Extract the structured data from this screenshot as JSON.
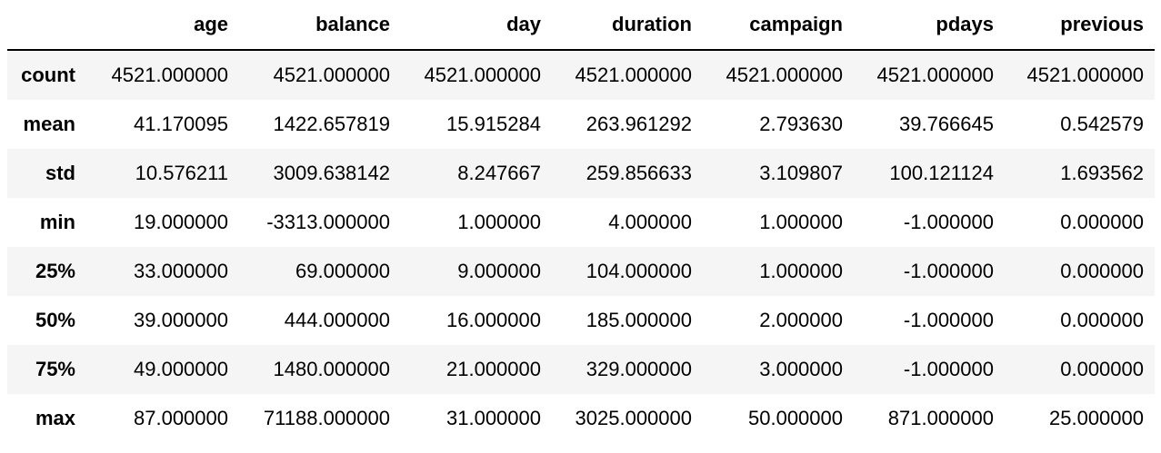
{
  "table": {
    "index_header": "",
    "columns": [
      "age",
      "balance",
      "day",
      "duration",
      "campaign",
      "pdays",
      "previous"
    ],
    "rows": [
      {
        "label": "count",
        "values": [
          "4521.000000",
          "4521.000000",
          "4521.000000",
          "4521.000000",
          "4521.000000",
          "4521.000000",
          "4521.000000"
        ]
      },
      {
        "label": "mean",
        "values": [
          "41.170095",
          "1422.657819",
          "15.915284",
          "263.961292",
          "2.793630",
          "39.766645",
          "0.542579"
        ]
      },
      {
        "label": "std",
        "values": [
          "10.576211",
          "3009.638142",
          "8.247667",
          "259.856633",
          "3.109807",
          "100.121124",
          "1.693562"
        ]
      },
      {
        "label": "min",
        "values": [
          "19.000000",
          "-3313.000000",
          "1.000000",
          "4.000000",
          "1.000000",
          "-1.000000",
          "0.000000"
        ]
      },
      {
        "label": "25%",
        "values": [
          "33.000000",
          "69.000000",
          "9.000000",
          "104.000000",
          "1.000000",
          "-1.000000",
          "0.000000"
        ]
      },
      {
        "label": "50%",
        "values": [
          "39.000000",
          "444.000000",
          "16.000000",
          "185.000000",
          "2.000000",
          "-1.000000",
          "0.000000"
        ]
      },
      {
        "label": "75%",
        "values": [
          "49.000000",
          "1480.000000",
          "21.000000",
          "329.000000",
          "3.000000",
          "-1.000000",
          "0.000000"
        ]
      },
      {
        "label": "max",
        "values": [
          "87.000000",
          "71188.000000",
          "31.000000",
          "3025.000000",
          "50.000000",
          "871.000000",
          "25.000000"
        ]
      }
    ]
  }
}
